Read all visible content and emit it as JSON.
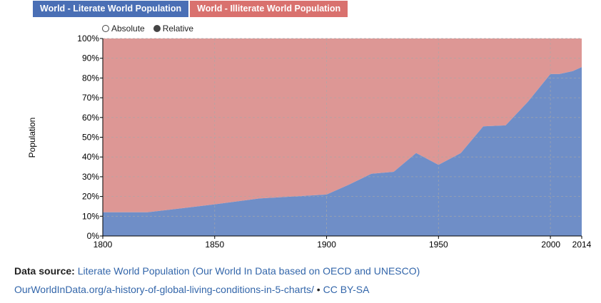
{
  "legend": {
    "items": [
      {
        "label": "World - Literate World Population",
        "color": "#4a6fb5"
      },
      {
        "label": "World - Illiterate World Population",
        "color": "#d9716e"
      }
    ]
  },
  "mode": {
    "absolute": "Absolute",
    "relative": "Relative",
    "selected": "relative"
  },
  "colors": {
    "literate_fill": "#6f8ec7",
    "illiterate_fill": "#dd9795"
  },
  "chart_data": {
    "type": "area",
    "stacked": true,
    "ylabel": "Population",
    "xlabel": "",
    "xlim": [
      1800,
      2014
    ],
    "ylim": [
      0,
      100
    ],
    "grid": true,
    "x_ticks": [
      1800,
      1850,
      1900,
      1950,
      2000,
      2014
    ],
    "y_ticks": [
      "0%",
      "10%",
      "20%",
      "30%",
      "40%",
      "50%",
      "60%",
      "70%",
      "80%",
      "90%",
      "100%"
    ],
    "x": [
      1800,
      1820,
      1850,
      1870,
      1900,
      1910,
      1920,
      1930,
      1940,
      1950,
      1960,
      1970,
      1980,
      1990,
      2000,
      2004,
      2010,
      2014
    ],
    "series": [
      {
        "name": "World - Literate World Population",
        "values": [
          12,
          12,
          16,
          19,
          21,
          26,
          31.5,
          32.5,
          42,
          36,
          42,
          55.5,
          56,
          68,
          82,
          82,
          83.5,
          85.5
        ]
      },
      {
        "name": "World - Illiterate World Population",
        "values": [
          88,
          88,
          84,
          81,
          79,
          74,
          68.5,
          67.5,
          58,
          64,
          58,
          44.5,
          44,
          32,
          18,
          18,
          16.5,
          14.5
        ]
      }
    ]
  },
  "footer": {
    "source_label": "Data source:",
    "source_text": "Literate World Population (Our World In Data based on OECD and UNESCO)",
    "url": "OurWorldInData.org/a-history-of-global-living-conditions-in-5-charts/",
    "sep": "•",
    "license": "CC BY-SA"
  }
}
